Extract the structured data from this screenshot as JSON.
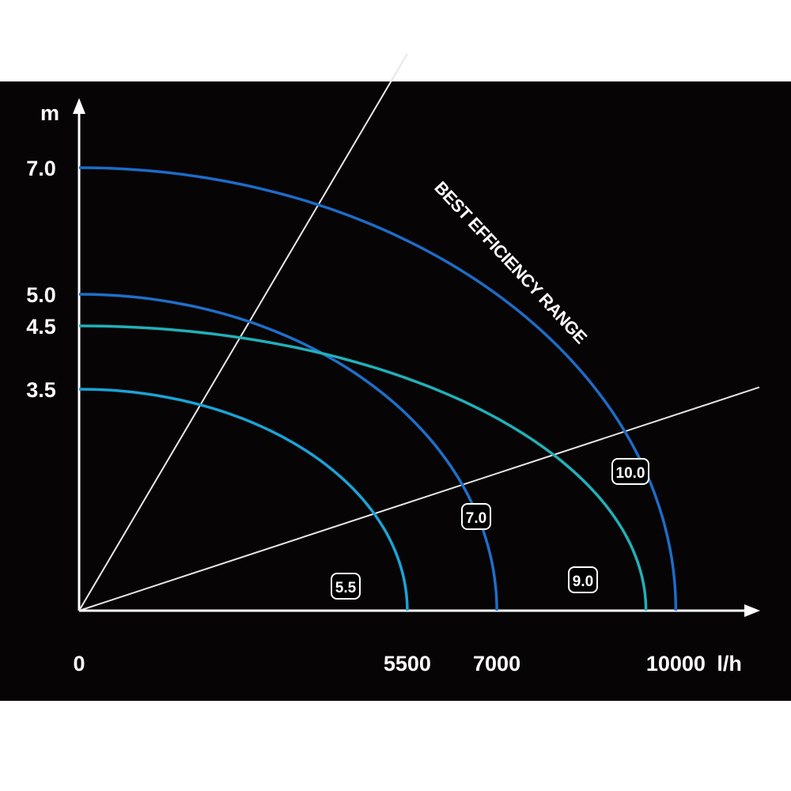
{
  "chart_data": {
    "type": "line",
    "y_unit": "m",
    "x_unit": "l/h",
    "x_ticks": [
      {
        "value": 0,
        "label": "0"
      },
      {
        "value": 5500,
        "label": "5500"
      },
      {
        "value": 7000,
        "label": "7000"
      },
      {
        "value": 10000,
        "label": "10000"
      }
    ],
    "y_ticks": [
      {
        "value": 3.5,
        "label": "3.5"
      },
      {
        "value": 4.5,
        "label": "4.5"
      },
      {
        "value": 5.0,
        "label": "5.0"
      },
      {
        "value": 7.0,
        "label": "7.0"
      }
    ],
    "xlim": [
      0,
      11400
    ],
    "ylim": [
      0,
      8.0
    ],
    "band_label": "BEST EFFICIENCY RANGE",
    "series": [
      {
        "name": "5.5",
        "max_head": 3.5,
        "max_flow": 5500,
        "color": "#1ba3d6"
      },
      {
        "name": "7.0",
        "max_head": 5.0,
        "max_flow": 7000,
        "color": "#1e6fc9"
      },
      {
        "name": "9.0",
        "max_head": 4.5,
        "max_flow": 9500,
        "color": "#21b0b8"
      },
      {
        "name": "10.0",
        "max_head": 7.0,
        "max_flow": 10000,
        "color": "#1d6cc7"
      }
    ],
    "efficiency_lines": [
      {
        "from": [
          0,
          0
        ],
        "to": [
          5500,
          8.8
        ]
      },
      {
        "from": [
          0,
          0
        ],
        "to": [
          11400,
          3.53
        ]
      }
    ],
    "grid": false
  }
}
